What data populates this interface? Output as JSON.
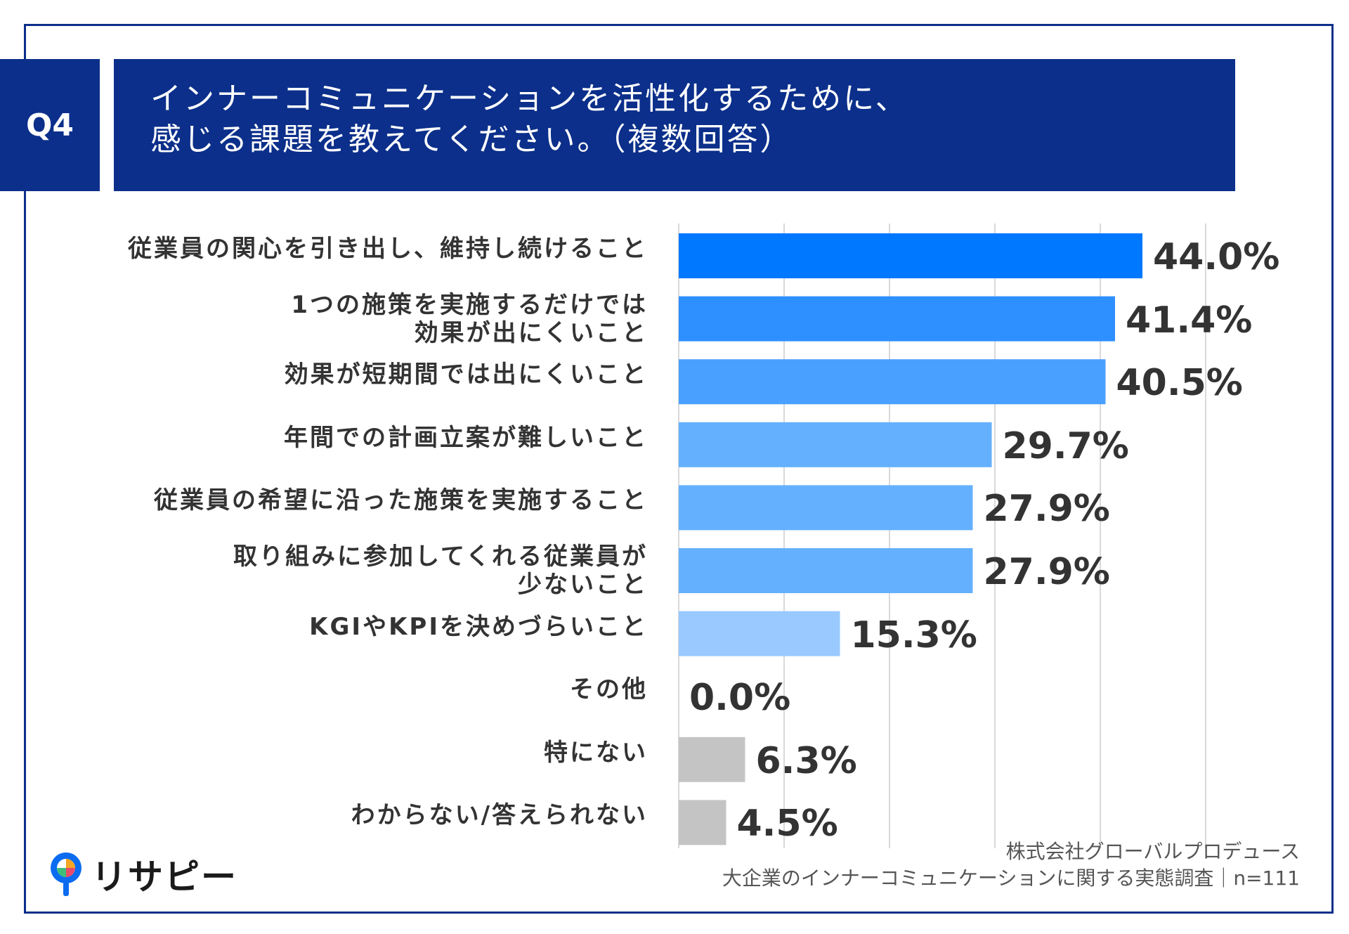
{
  "question": {
    "badge": "Q4",
    "title_line1": "インナーコミュニケーションを活性化するために、",
    "title_line2": "感じる課題を教えてください。（複数回答）"
  },
  "colors": {
    "frame": "#0b2f8a",
    "header_bg": "#0b2f8a",
    "bar_shades": [
      "#0078ff",
      "#2e8fff",
      "#4aa0ff",
      "#64b0ff",
      "#99c9ff",
      "#c4c4c4"
    ],
    "grid": "#d9d9d9"
  },
  "chart_data": {
    "type": "bar",
    "orientation": "horizontal",
    "title": "インナーコミュニケーションを活性化するために、感じる課題を教えてください。（複数回答）",
    "unit": "%",
    "xlim": [
      0,
      50
    ],
    "grid": true,
    "categories": [
      "従業員の関心を引き出し、維持し続けること",
      "1つの施策を実施するだけでは効果が出にくいこと",
      "効果が短期間では出にくいこと",
      "年間での計画立案が難しいこと",
      "従業員の希望に沿った施策を実施すること",
      "取り組みに参加してくれる従業員が少ないこと",
      "KGIやKPIを決めづらいこと",
      "その他",
      "特にない",
      "わからない/答えられない"
    ],
    "label_lines": [
      [
        "従業員の関心を引き出し、維持し続けること"
      ],
      [
        "1つの施策を実施するだけでは",
        "効果が出にくいこと"
      ],
      [
        "効果が短期間では出にくいこと"
      ],
      [
        "年間での計画立案が難しいこと"
      ],
      [
        "従業員の希望に沿った施策を実施すること"
      ],
      [
        "取り組みに参加してくれる従業員が",
        "少ないこと"
      ],
      [
        "KGIやKPIを決めづらいこと"
      ],
      [
        "その他"
      ],
      [
        "特にない"
      ],
      [
        "わからない/答えられない"
      ]
    ],
    "values": [
      44.0,
      41.4,
      40.5,
      29.7,
      27.9,
      27.9,
      15.3,
      0.0,
      6.3,
      4.5
    ],
    "value_labels": [
      "44.0%",
      "41.4%",
      "40.5%",
      "29.7%",
      "27.9%",
      "27.9%",
      "15.3%",
      "0.0%",
      "6.3%",
      "4.5%"
    ],
    "color_index": [
      0,
      1,
      2,
      3,
      3,
      3,
      4,
      4,
      5,
      5
    ]
  },
  "source": {
    "line1": "株式会社グローバルプロデュース",
    "line2": "大企業のインナーコミュニケーションに関する実態調査｜n=111"
  },
  "logo": {
    "text": "リサピー"
  }
}
